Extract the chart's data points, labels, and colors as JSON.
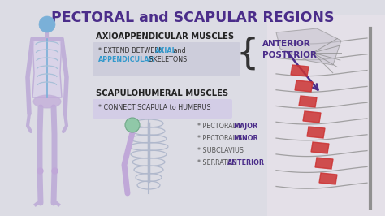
{
  "bg_color": "#dcdce4",
  "title_color": "#4b2d8a",
  "title": "PECTORAL and SCAPULAR REGIONS",
  "s1_header": "AXIOAPPENDICULAR MUSCLES",
  "s1_box_color": "#c8c8d8",
  "s1_line1_pre": "* EXTEND BETWEEN ",
  "s1_axial": "AXIAL",
  "s1_axial_color": "#3399cc",
  "s1_line1_post": " and",
  "s1_line2_app": "APPENDICULAR",
  "s1_app_color": "#3399cc",
  "s1_line2_post": " SKELETONS",
  "s2_header": "SCAPULOHUMERAL MUSCLES",
  "s2_box_color": "#d0c8e8",
  "s2_bullet": "* CONNECT SCAPULA to HUMERUS",
  "anterior": "ANTERIOR",
  "posterior": "POSTERIOR",
  "label_color": "#4b2d8a",
  "arrow_color": "#4b2d8a",
  "bullet_items": [
    [
      "* PECTORALIS ",
      "MAJOR"
    ],
    [
      "* PECTORALIS ",
      "MINOR"
    ],
    [
      "* SUBCLAVIUS",
      ""
    ],
    [
      "* SERRATUS ",
      "ANTERIOR"
    ]
  ],
  "bullet_color": "#555555",
  "bullet_bold_color": "#4b2d8a",
  "body_outline_color": "#c0b0d8",
  "body_fill_color": "#d8ccec",
  "skeleton_color": "#7ab0d8",
  "rib_color": "#a8c0d8",
  "spine_color": "#7ab0d8",
  "pelvis_color": "#c0a8d8",
  "arm_color": "#c0b0d8",
  "small_rib_color": "#b0b8cc",
  "small_shoulder_color": "#a0c8b0",
  "small_arm_color": "#c0a8d8",
  "right_bg_color": "#e0dce8",
  "right_rib_color": "#b0b0c0",
  "right_red_color": "#cc3333"
}
